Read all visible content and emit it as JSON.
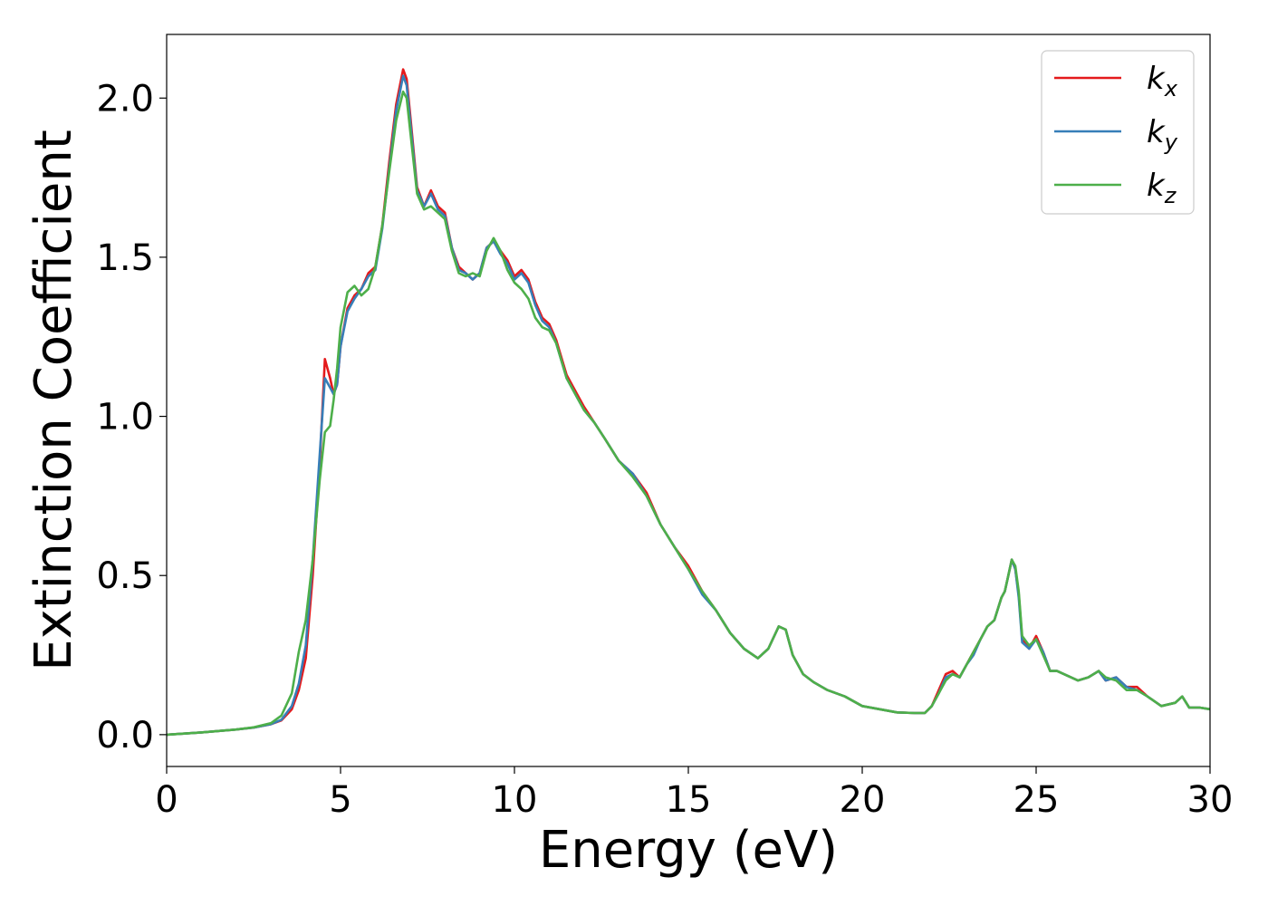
{
  "chart_data": {
    "type": "line",
    "title": "",
    "xlabel": "Energy (eV)",
    "ylabel": "Extinction Coefficient",
    "xlim": [
      0,
      30
    ],
    "ylim": [
      -0.1,
      2.2
    ],
    "xticks": [
      0,
      5,
      10,
      15,
      20,
      25,
      30
    ],
    "xtick_labels": [
      "0",
      "5",
      "10",
      "15",
      "20",
      "25",
      "30"
    ],
    "yticks": [
      0.0,
      0.5,
      1.0,
      1.5,
      2.0
    ],
    "ytick_labels": [
      "0.0",
      "0.5",
      "1.0",
      "1.5",
      "2.0"
    ],
    "grid": false,
    "legend_position": "top-right",
    "series": [
      {
        "name": "k",
        "subscript": "x",
        "color": "#e41a1c",
        "x": [
          0,
          1,
          2,
          2.5,
          3,
          3.3,
          3.6,
          3.8,
          4.0,
          4.2,
          4.4,
          4.55,
          4.7,
          4.8,
          4.9,
          5.0,
          5.2,
          5.4,
          5.6,
          5.8,
          6.0,
          6.2,
          6.4,
          6.6,
          6.8,
          6.9,
          7.0,
          7.2,
          7.4,
          7.6,
          7.8,
          8.0,
          8.2,
          8.4,
          8.6,
          8.8,
          9.0,
          9.2,
          9.4,
          9.6,
          9.8,
          10.0,
          10.2,
          10.4,
          10.6,
          10.8,
          11.0,
          11.2,
          11.5,
          11.8,
          12.0,
          12.3,
          12.6,
          13.0,
          13.4,
          13.8,
          14.2,
          14.6,
          15.0,
          15.4,
          15.8,
          16.2,
          16.6,
          17.0,
          17.3,
          17.6,
          17.8,
          18.0,
          18.3,
          18.6,
          19.0,
          19.5,
          20.0,
          20.5,
          21.0,
          21.5,
          21.8,
          22.0,
          22.2,
          22.4,
          22.6,
          22.8,
          23.0,
          23.2,
          23.4,
          23.6,
          23.8,
          24.0,
          24.1,
          24.2,
          24.3,
          24.4,
          24.5,
          24.6,
          24.8,
          25.0,
          25.2,
          25.4,
          25.6,
          25.8,
          26.0,
          26.2,
          26.5,
          26.8,
          27.0,
          27.3,
          27.6,
          27.9,
          28.2,
          28.6,
          29.0,
          29.2,
          29.4,
          29.7,
          30.0
        ],
        "y": [
          0.0,
          0.007,
          0.016,
          0.022,
          0.033,
          0.045,
          0.08,
          0.14,
          0.24,
          0.5,
          0.85,
          1.18,
          1.12,
          1.07,
          1.1,
          1.22,
          1.34,
          1.38,
          1.4,
          1.45,
          1.47,
          1.6,
          1.8,
          1.98,
          2.09,
          2.06,
          1.95,
          1.72,
          1.66,
          1.71,
          1.66,
          1.64,
          1.53,
          1.47,
          1.45,
          1.43,
          1.45,
          1.53,
          1.55,
          1.52,
          1.49,
          1.44,
          1.46,
          1.43,
          1.36,
          1.31,
          1.29,
          1.24,
          1.13,
          1.07,
          1.03,
          0.98,
          0.93,
          0.86,
          0.82,
          0.76,
          0.66,
          0.59,
          0.53,
          0.45,
          0.39,
          0.32,
          0.27,
          0.24,
          0.27,
          0.34,
          0.33,
          0.25,
          0.19,
          0.165,
          0.14,
          0.12,
          0.09,
          0.08,
          0.07,
          0.068,
          0.068,
          0.09,
          0.14,
          0.19,
          0.2,
          0.18,
          0.22,
          0.26,
          0.3,
          0.34,
          0.36,
          0.43,
          0.45,
          0.5,
          0.55,
          0.52,
          0.44,
          0.3,
          0.27,
          0.31,
          0.26,
          0.2,
          0.2,
          0.19,
          0.18,
          0.17,
          0.18,
          0.2,
          0.17,
          0.18,
          0.15,
          0.15,
          0.12,
          0.09,
          0.1,
          0.12,
          0.085,
          0.085,
          0.08
        ]
      },
      {
        "name": "k",
        "subscript": "y",
        "color": "#377eb8",
        "x": [
          0,
          1,
          2,
          2.5,
          3,
          3.3,
          3.6,
          3.8,
          4.0,
          4.2,
          4.4,
          4.55,
          4.7,
          4.8,
          4.9,
          5.0,
          5.2,
          5.4,
          5.6,
          5.8,
          6.0,
          6.2,
          6.4,
          6.6,
          6.8,
          6.9,
          7.0,
          7.2,
          7.4,
          7.6,
          7.8,
          8.0,
          8.2,
          8.4,
          8.6,
          8.8,
          9.0,
          9.2,
          9.4,
          9.6,
          9.8,
          10.0,
          10.2,
          10.4,
          10.6,
          10.8,
          11.0,
          11.2,
          11.5,
          11.8,
          12.0,
          12.3,
          12.6,
          13.0,
          13.4,
          13.8,
          14.2,
          14.6,
          15.0,
          15.4,
          15.8,
          16.2,
          16.6,
          17.0,
          17.3,
          17.6,
          17.8,
          18.0,
          18.3,
          18.6,
          19.0,
          19.5,
          20.0,
          20.5,
          21.0,
          21.5,
          21.8,
          22.0,
          22.2,
          22.4,
          22.6,
          22.8,
          23.0,
          23.2,
          23.4,
          23.6,
          23.8,
          24.0,
          24.1,
          24.2,
          24.3,
          24.4,
          24.5,
          24.6,
          24.8,
          25.0,
          25.2,
          25.4,
          25.6,
          25.8,
          26.0,
          26.2,
          26.5,
          26.8,
          27.0,
          27.3,
          27.6,
          27.9,
          28.2,
          28.6,
          29.0,
          29.2,
          29.4,
          29.7,
          30.0
        ],
        "y": [
          0.0,
          0.007,
          0.016,
          0.022,
          0.033,
          0.047,
          0.09,
          0.16,
          0.28,
          0.55,
          0.88,
          1.12,
          1.09,
          1.07,
          1.1,
          1.22,
          1.33,
          1.37,
          1.4,
          1.44,
          1.46,
          1.59,
          1.78,
          1.96,
          2.07,
          2.04,
          1.93,
          1.71,
          1.66,
          1.7,
          1.65,
          1.63,
          1.53,
          1.46,
          1.45,
          1.43,
          1.45,
          1.53,
          1.55,
          1.51,
          1.48,
          1.43,
          1.45,
          1.42,
          1.35,
          1.3,
          1.28,
          1.23,
          1.12,
          1.06,
          1.02,
          0.98,
          0.93,
          0.86,
          0.82,
          0.75,
          0.66,
          0.59,
          0.52,
          0.44,
          0.39,
          0.32,
          0.27,
          0.24,
          0.27,
          0.34,
          0.33,
          0.25,
          0.19,
          0.165,
          0.14,
          0.12,
          0.09,
          0.08,
          0.07,
          0.068,
          0.068,
          0.09,
          0.13,
          0.18,
          0.19,
          0.18,
          0.22,
          0.25,
          0.3,
          0.34,
          0.36,
          0.43,
          0.45,
          0.5,
          0.55,
          0.52,
          0.43,
          0.29,
          0.27,
          0.3,
          0.26,
          0.2,
          0.2,
          0.19,
          0.18,
          0.17,
          0.18,
          0.2,
          0.17,
          0.18,
          0.15,
          0.14,
          0.12,
          0.09,
          0.1,
          0.12,
          0.085,
          0.085,
          0.08
        ]
      },
      {
        "name": "k",
        "subscript": "z",
        "color": "#4daf4a",
        "x": [
          0,
          1,
          2,
          2.5,
          3,
          3.3,
          3.6,
          3.8,
          4.0,
          4.2,
          4.4,
          4.55,
          4.7,
          4.8,
          4.9,
          5.0,
          5.2,
          5.4,
          5.6,
          5.8,
          6.0,
          6.2,
          6.4,
          6.6,
          6.8,
          6.9,
          7.0,
          7.2,
          7.4,
          7.6,
          7.8,
          8.0,
          8.2,
          8.4,
          8.6,
          8.8,
          9.0,
          9.2,
          9.4,
          9.6,
          9.8,
          10.0,
          10.2,
          10.4,
          10.6,
          10.8,
          11.0,
          11.2,
          11.5,
          11.8,
          12.0,
          12.3,
          12.6,
          13.0,
          13.4,
          13.8,
          14.2,
          14.6,
          15.0,
          15.4,
          15.8,
          16.2,
          16.6,
          17.0,
          17.3,
          17.6,
          17.8,
          18.0,
          18.3,
          18.6,
          19.0,
          19.5,
          20.0,
          20.5,
          21.0,
          21.5,
          21.8,
          22.0,
          22.2,
          22.4,
          22.6,
          22.8,
          23.0,
          23.2,
          23.4,
          23.6,
          23.8,
          24.0,
          24.1,
          24.2,
          24.3,
          24.4,
          24.5,
          24.6,
          24.8,
          25.0,
          25.2,
          25.4,
          25.6,
          25.8,
          26.0,
          26.2,
          26.5,
          26.8,
          27.0,
          27.3,
          27.6,
          27.9,
          28.2,
          28.6,
          29.0,
          29.2,
          29.4,
          29.7,
          30.0
        ],
        "y": [
          0.0,
          0.007,
          0.016,
          0.023,
          0.036,
          0.06,
          0.13,
          0.26,
          0.36,
          0.55,
          0.8,
          0.95,
          0.97,
          1.05,
          1.15,
          1.28,
          1.39,
          1.41,
          1.38,
          1.4,
          1.47,
          1.6,
          1.77,
          1.93,
          2.02,
          2.0,
          1.9,
          1.7,
          1.65,
          1.66,
          1.64,
          1.62,
          1.52,
          1.45,
          1.44,
          1.45,
          1.44,
          1.52,
          1.56,
          1.52,
          1.46,
          1.42,
          1.4,
          1.37,
          1.31,
          1.28,
          1.27,
          1.23,
          1.12,
          1.06,
          1.02,
          0.98,
          0.93,
          0.86,
          0.81,
          0.75,
          0.66,
          0.59,
          0.52,
          0.45,
          0.39,
          0.32,
          0.27,
          0.24,
          0.27,
          0.34,
          0.33,
          0.25,
          0.19,
          0.165,
          0.14,
          0.12,
          0.09,
          0.08,
          0.07,
          0.068,
          0.068,
          0.09,
          0.13,
          0.17,
          0.19,
          0.18,
          0.22,
          0.26,
          0.3,
          0.34,
          0.36,
          0.43,
          0.45,
          0.5,
          0.55,
          0.53,
          0.45,
          0.31,
          0.28,
          0.3,
          0.25,
          0.2,
          0.2,
          0.19,
          0.18,
          0.17,
          0.18,
          0.2,
          0.18,
          0.17,
          0.14,
          0.14,
          0.12,
          0.09,
          0.1,
          0.12,
          0.085,
          0.085,
          0.08
        ]
      }
    ]
  }
}
